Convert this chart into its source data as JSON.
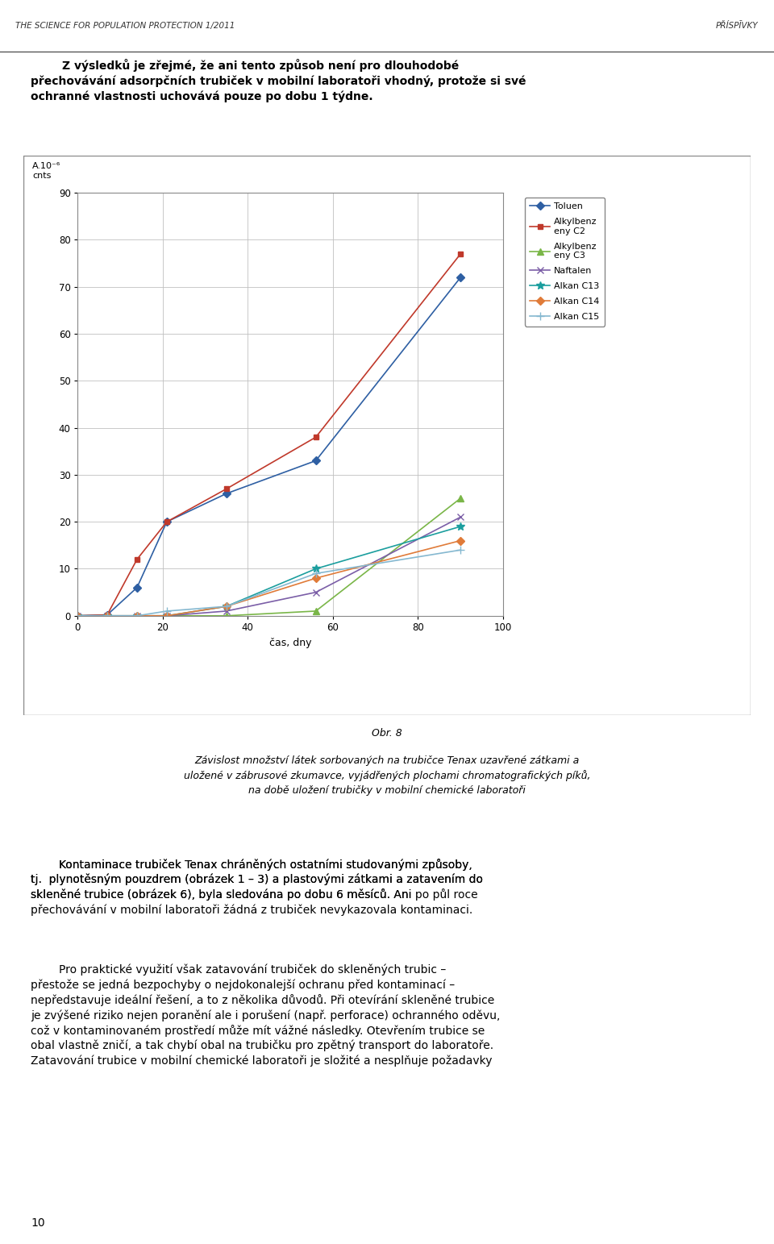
{
  "header_left": "THE SCIENCE FOR POPULATION PROTECTION 1/2011",
  "header_right": "PŘÍSPĨVKY",
  "intro_text": "Z výsledků je zřejmé, že ani tento způsob není pro dlouhodobé přechovavání adsorpčních trubiček v mobilní laboratoři vhodný, protože si své ochranné vlastnosti uchovává pouze po dobu 1 týdne.",
  "fig_label": "Obr. 8",
  "fig_caption": "Závislost množství látek sorbovaných na trubičce Tenax uzavřené zátkami a\nuložené v zábrusové zkumavce, vyjádřených plochami chromatografických píků,\nna době uložení trubičky v mobilní chemické laboratoři",
  "body_text_1": "Kontaminace trubiček Tenax chráněných ostatními studovanými způsoby,\ntj. plynoTěsným pouzdrem (obrázek 1 – 3) a plastovými zátkami a zatavením do\nskleněné trubice (obrázek 6), byla sledována po dobu 6 měsíců. Ani po půl roce\npřechovavání v mobilní laboratoři žádná z trubiček nevykazovala kontaminaci.",
  "body_text_2": "Pro praktické využití však zatavování trubiček do skleněných trubic –\npřestože se jedná bezpochyby o nejdokonalejší ochranu před kontaminací –\nnepředstavuje ideální řešení, a to z několika důvodů. Při otevírání skleněné trubice\nje zvýšené riziko nejen poranění ale i porušení (např. perforace) ochranného oděvu,\ncož v kontaminovaném prostředí může mít vážné následky. Otevřením trubice se\nobal vlastně zničí, a tak chybí obal na trubičku pro zpětný transport do laboratoře.\nZatavování trubice v mobilní chemické laboratoři je složité a nesplňuje požadavky",
  "page_number": "10",
  "ylabel": "A.10⁻⁶\ncnts",
  "xlabel": "čas, dny",
  "xlim": [
    0,
    100
  ],
  "ylim": [
    0,
    90
  ],
  "yticks": [
    0,
    10,
    20,
    30,
    40,
    50,
    60,
    70,
    80,
    90
  ],
  "xticks": [
    0,
    20,
    40,
    60,
    80,
    100
  ],
  "series": [
    {
      "label": "Toluen",
      "color": "#2E5FA3",
      "marker": "D",
      "markersize": 5,
      "x": [
        0,
        7,
        14,
        21,
        35,
        56,
        90
      ],
      "y": [
        0,
        0.2,
        6,
        20,
        26,
        33,
        72
      ]
    },
    {
      "label": "Alkylbenz\neny C2",
      "color": "#C0392B",
      "marker": "s",
      "markersize": 5,
      "x": [
        0,
        7,
        14,
        21,
        35,
        56,
        90
      ],
      "y": [
        0,
        0.2,
        12,
        20,
        27,
        38,
        77
      ]
    },
    {
      "label": "Alkylbenz\neny C3",
      "color": "#7AB648",
      "marker": "^",
      "markersize": 6,
      "x": [
        0,
        7,
        14,
        21,
        35,
        56,
        90
      ],
      "y": [
        0,
        0,
        0,
        0,
        0,
        1,
        25
      ]
    },
    {
      "label": "Naftalen",
      "color": "#7B5EA7",
      "marker": "x",
      "markersize": 6,
      "x": [
        0,
        7,
        14,
        21,
        35,
        56,
        90
      ],
      "y": [
        0,
        0,
        0,
        0,
        1,
        5,
        21
      ]
    },
    {
      "label": "Alkan C13",
      "color": "#1B9E9E",
      "marker": "*",
      "markersize": 7,
      "x": [
        0,
        7,
        14,
        21,
        35,
        56,
        90
      ],
      "y": [
        0,
        0,
        0,
        0,
        2,
        10,
        19
      ]
    },
    {
      "label": "Alkan C14",
      "color": "#E07B39",
      "marker": "D",
      "markersize": 5,
      "x": [
        0,
        7,
        14,
        21,
        35,
        56,
        90
      ],
      "y": [
        0,
        0,
        0,
        0,
        2,
        8,
        16
      ]
    },
    {
      "label": "Alkan C15",
      "color": "#85B8D0",
      "marker": "+",
      "markersize": 7,
      "x": [
        0,
        7,
        14,
        21,
        35,
        56,
        90
      ],
      "y": [
        0,
        0,
        0,
        1,
        2,
        9,
        14
      ]
    }
  ],
  "figure_bg": "#ffffff",
  "plot_bg": "#ffffff",
  "grid_color": "#C0C0C0",
  "border_color": "#808080",
  "fig_width": 9.6,
  "fig_height": 15.43
}
